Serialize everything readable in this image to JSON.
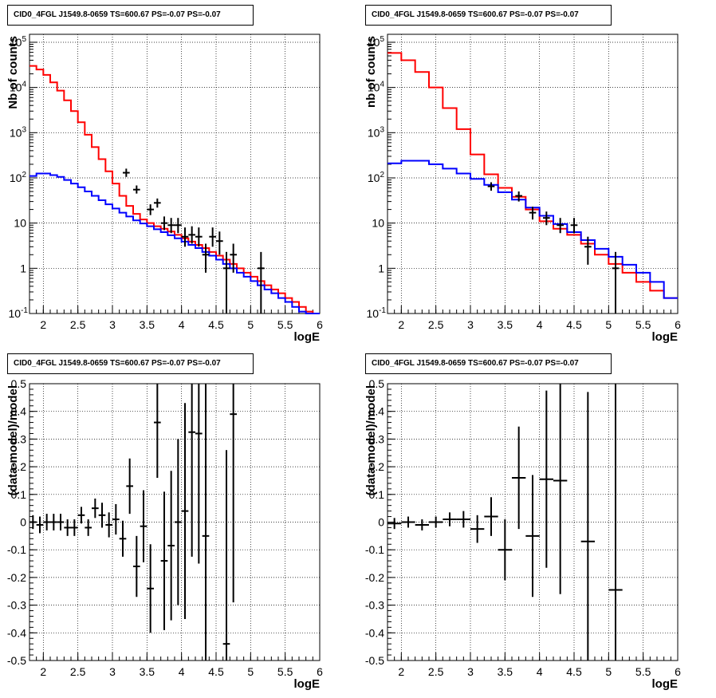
{
  "colors": {
    "data": "#000000",
    "total_model": "#ff0000",
    "source_model": "#0000ff",
    "grid": "#000000"
  },
  "chart_data": [
    {
      "type": "line",
      "title": "CID0_4FGL J1549.8-0659 TS=600.67 PS=-0.07 PS=-0.07",
      "xlabel": "logE",
      "ylabel": "Nb of counts",
      "y_scale": "log",
      "xlim": [
        1.8,
        6.0
      ],
      "ylim": [
        0.1,
        150000
      ],
      "grid": true,
      "x_ticks": [
        "2",
        "2.5",
        "3",
        "3.5",
        "4",
        "4.5",
        "5",
        "5.5",
        "6"
      ],
      "y_ticks": [
        "10^-1",
        "1",
        "10",
        "10^2",
        "10^3",
        "10^4",
        "10^5"
      ],
      "bin_edges": [
        1.8,
        1.9,
        2.0,
        2.1,
        2.2,
        2.3,
        2.4,
        2.5,
        2.6,
        2.7,
        2.8,
        2.9,
        3.0,
        3.1,
        3.2,
        3.3,
        3.4,
        3.5,
        3.6,
        3.7,
        3.8,
        3.9,
        4.0,
        4.1,
        4.2,
        4.3,
        4.4,
        4.5,
        4.6,
        4.7,
        4.8,
        4.9,
        5.0,
        5.1,
        5.2,
        5.3,
        5.4,
        5.5,
        5.6,
        5.7,
        5.8,
        5.9,
        6.0
      ],
      "series": [
        {
          "role": "total_model",
          "values": [
            30000,
            25000,
            19000,
            13000,
            8500,
            5200,
            3000,
            1700,
            900,
            480,
            260,
            140,
            75,
            40,
            24,
            16,
            12,
            10,
            8.5,
            7.5,
            6.5,
            5.5,
            4.6,
            3.9,
            3.3,
            2.8,
            2.3,
            1.9,
            1.55,
            1.25,
            1.0,
            0.8,
            0.65,
            0.52,
            0.42,
            0.34,
            0.28,
            0.22,
            0.18,
            0.14,
            0.11,
            0.09
          ]
        },
        {
          "role": "source_model",
          "values": [
            110,
            125,
            125,
            115,
            105,
            90,
            75,
            62,
            50,
            40,
            32,
            26,
            21,
            17,
            14,
            11.5,
            9.8,
            8.5,
            7.3,
            6.3,
            5.4,
            4.6,
            3.9,
            3.3,
            2.8,
            2.3,
            1.9,
            1.55,
            1.25,
            1.0,
            0.8,
            0.65,
            0.52,
            0.42,
            0.34,
            0.28,
            0.22,
            0.18,
            0.14,
            0.11,
            0.09,
            0.075
          ]
        },
        {
          "role": "data",
          "points": [
            {
              "x": 3.2,
              "y": 130,
              "ylo": 105,
              "yhi": 160
            },
            {
              "x": 3.35,
              "y": 55,
              "ylo": 45,
              "yhi": 68
            },
            {
              "x": 3.55,
              "y": 20,
              "ylo": 15,
              "yhi": 26
            },
            {
              "x": 3.65,
              "y": 28,
              "ylo": 22,
              "yhi": 35
            },
            {
              "x": 3.75,
              "y": 10,
              "ylo": 7,
              "yhi": 14
            },
            {
              "x": 3.85,
              "y": 9,
              "ylo": 6,
              "yhi": 13
            },
            {
              "x": 3.95,
              "y": 9,
              "ylo": 6,
              "yhi": 13
            },
            {
              "x": 4.05,
              "y": 5,
              "ylo": 3,
              "yhi": 8
            },
            {
              "x": 4.15,
              "y": 5.5,
              "ylo": 3.5,
              "yhi": 8.5
            },
            {
              "x": 4.25,
              "y": 5,
              "ylo": 3,
              "yhi": 8
            },
            {
              "x": 4.35,
              "y": 2,
              "ylo": 0.8,
              "yhi": 3.5
            },
            {
              "x": 4.45,
              "y": 5,
              "ylo": 3,
              "yhi": 8
            },
            {
              "x": 4.55,
              "y": 4,
              "ylo": 2,
              "yhi": 6.5
            },
            {
              "x": 4.65,
              "y": 1,
              "ylo": 0.1,
              "yhi": 2.3
            },
            {
              "x": 4.75,
              "y": 2,
              "ylo": 0.8,
              "yhi": 3.5
            },
            {
              "x": 5.15,
              "y": 1,
              "ylo": 0.1,
              "yhi": 2.3
            }
          ]
        }
      ]
    },
    {
      "type": "line",
      "title": "CID0_4FGL J1549.8-0659 TS=600.67 PS=-0.07 PS=-0.07",
      "xlabel": "logE",
      "ylabel": "nb of counts",
      "y_scale": "log",
      "xlim": [
        1.8,
        6.0
      ],
      "ylim": [
        0.1,
        150000
      ],
      "grid": true,
      "x_ticks": [
        "2",
        "2.5",
        "3",
        "3.5",
        "4",
        "4.5",
        "5",
        "5.5",
        "6"
      ],
      "y_ticks": [
        "10^-1",
        "1",
        "10",
        "10^2",
        "10^3",
        "10^4",
        "10^5"
      ],
      "bin_edges": [
        1.8,
        2.0,
        2.2,
        2.4,
        2.6,
        2.8,
        3.0,
        3.2,
        3.4,
        3.6,
        3.8,
        4.0,
        4.2,
        4.4,
        4.6,
        4.8,
        5.0,
        5.2,
        5.4,
        5.6,
        5.8,
        6.0
      ],
      "series": [
        {
          "role": "total_model",
          "values": [
            58000,
            40000,
            22000,
            10000,
            3500,
            1200,
            330,
            120,
            60,
            38,
            20,
            11,
            7.5,
            5.5,
            3.5,
            2.0,
            1.25,
            0.8,
            0.5,
            0.32,
            0.22
          ]
        },
        {
          "role": "source_model",
          "values": [
            210,
            240,
            240,
            200,
            160,
            125,
            95,
            70,
            48,
            33,
            22,
            14.5,
            9.5,
            6.3,
            4.2,
            2.7,
            1.8,
            1.2,
            0.8,
            0.5,
            0.22
          ]
        },
        {
          "role": "data",
          "points": [
            {
              "x": 3.3,
              "y": 65,
              "ylo": 52,
              "yhi": 80
            },
            {
              "x": 3.7,
              "y": 40,
              "ylo": 30,
              "yhi": 50
            },
            {
              "x": 3.9,
              "y": 17,
              "ylo": 12,
              "yhi": 23
            },
            {
              "x": 4.1,
              "y": 13,
              "ylo": 9,
              "yhi": 18
            },
            {
              "x": 4.3,
              "y": 9,
              "ylo": 6,
              "yhi": 13
            },
            {
              "x": 4.5,
              "y": 9,
              "ylo": 6,
              "yhi": 13
            },
            {
              "x": 4.7,
              "y": 3,
              "ylo": 1.2,
              "yhi": 5
            },
            {
              "x": 5.1,
              "y": 1,
              "ylo": 0.1,
              "yhi": 2.3
            }
          ]
        }
      ]
    },
    {
      "type": "scatter",
      "title": "CID0_4FGL J1549.8-0659 TS=600.67 PS=-0.07 PS=-0.07",
      "xlabel": "logE",
      "ylabel": "(data-model)/model",
      "xlim": [
        1.8,
        6.0
      ],
      "ylim": [
        -0.5,
        0.5
      ],
      "grid": true,
      "x_ticks": [
        "2",
        "2.5",
        "3",
        "3.5",
        "4",
        "4.5",
        "5",
        "5.5",
        "6"
      ],
      "y_ticks": [
        "-0.5",
        "-0.4",
        "-0.3",
        "-0.2",
        "-0.1",
        "0",
        "0.1",
        "0.2",
        "0.3",
        "0.4",
        "0.5"
      ],
      "series": [
        {
          "role": "data",
          "points": [
            {
              "x": 1.85,
              "y": 0.0,
              "err": 0.025
            },
            {
              "x": 1.95,
              "y": -0.01,
              "err": 0.03
            },
            {
              "x": 2.05,
              "y": 0.0,
              "err": 0.03
            },
            {
              "x": 2.15,
              "y": 0.0,
              "err": 0.03
            },
            {
              "x": 2.25,
              "y": 0.0,
              "err": 0.03
            },
            {
              "x": 2.35,
              "y": -0.02,
              "err": 0.03
            },
            {
              "x": 2.45,
              "y": -0.02,
              "err": 0.03
            },
            {
              "x": 2.55,
              "y": 0.025,
              "err": 0.03
            },
            {
              "x": 2.65,
              "y": -0.02,
              "err": 0.03
            },
            {
              "x": 2.75,
              "y": 0.05,
              "err": 0.035
            },
            {
              "x": 2.85,
              "y": 0.025,
              "err": 0.045
            },
            {
              "x": 2.95,
              "y": -0.01,
              "err": 0.045
            },
            {
              "x": 3.05,
              "y": 0.01,
              "err": 0.055
            },
            {
              "x": 3.15,
              "y": -0.06,
              "err": 0.065
            },
            {
              "x": 3.25,
              "y": 0.13,
              "err": 0.1
            },
            {
              "x": 3.35,
              "y": -0.16,
              "err": 0.11
            },
            {
              "x": 3.45,
              "y": -0.015,
              "err": 0.13
            },
            {
              "x": 3.55,
              "y": -0.24,
              "err": 0.16
            },
            {
              "x": 3.65,
              "y": 0.36,
              "err": 0.2
            },
            {
              "x": 3.75,
              "y": -0.14,
              "err": 0.25
            },
            {
              "x": 3.85,
              "y": -0.085,
              "err": 0.27
            },
            {
              "x": 3.95,
              "y": 0.0,
              "err": 0.3
            },
            {
              "x": 4.05,
              "y": 0.04,
              "err": 0.39
            },
            {
              "x": 4.15,
              "y": 0.325,
              "err": 0.45
            },
            {
              "x": 4.25,
              "y": 0.32,
              "err": 0.47
            },
            {
              "x": 4.35,
              "y": -0.05,
              "err": 0.55
            },
            {
              "x": 4.65,
              "y": -0.44,
              "err": 0.7
            },
            {
              "x": 4.75,
              "y": 0.39,
              "err": 0.68
            }
          ]
        }
      ]
    },
    {
      "type": "scatter",
      "title": "CID0_4FGL J1549.8-0659 TS=600.67 PS=-0.07 PS=-0.07",
      "xlabel": "logE",
      "ylabel": "(data-model)/model",
      "xlim": [
        1.8,
        6.0
      ],
      "ylim": [
        -0.5,
        0.5
      ],
      "grid": true,
      "x_ticks": [
        "2",
        "2.5",
        "3",
        "3.5",
        "4",
        "4.5",
        "5",
        "5.5",
        "6"
      ],
      "y_ticks": [
        "-0.5",
        "-0.4",
        "-0.3",
        "-0.2",
        "-0.1",
        "0",
        "0.1",
        "0.2",
        "0.3",
        "0.4",
        "0.5"
      ],
      "series": [
        {
          "role": "data",
          "points": [
            {
              "x": 1.9,
              "y": -0.005,
              "err": 0.02
            },
            {
              "x": 2.1,
              "y": 0.0,
              "err": 0.02
            },
            {
              "x": 2.3,
              "y": -0.01,
              "err": 0.02
            },
            {
              "x": 2.5,
              "y": 0.0,
              "err": 0.02
            },
            {
              "x": 2.7,
              "y": 0.01,
              "err": 0.025
            },
            {
              "x": 2.9,
              "y": 0.01,
              "err": 0.03
            },
            {
              "x": 3.1,
              "y": -0.025,
              "err": 0.05
            },
            {
              "x": 3.3,
              "y": 0.02,
              "err": 0.07
            },
            {
              "x": 3.5,
              "y": -0.1,
              "err": 0.11
            },
            {
              "x": 3.7,
              "y": 0.16,
              "err": 0.185
            },
            {
              "x": 3.9,
              "y": -0.05,
              "err": 0.22
            },
            {
              "x": 4.1,
              "y": 0.155,
              "err": 0.32
            },
            {
              "x": 4.3,
              "y": 0.15,
              "err": 0.41
            },
            {
              "x": 4.7,
              "y": -0.07,
              "err": 0.54
            },
            {
              "x": 5.1,
              "y": -0.245,
              "err": 0.75
            }
          ]
        }
      ]
    }
  ]
}
